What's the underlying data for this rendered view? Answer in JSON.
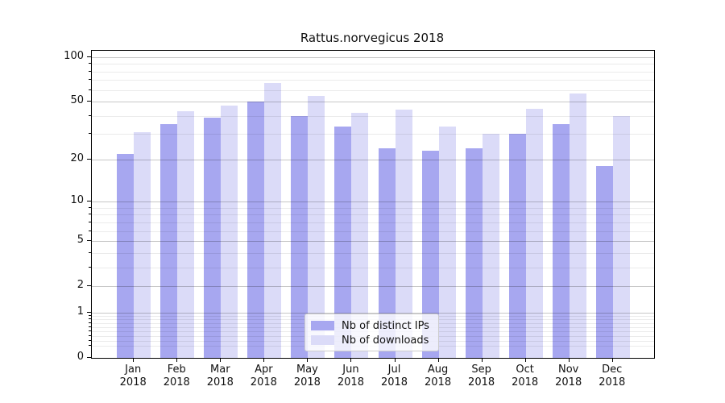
{
  "title": "Rattus.norvegicus 2018",
  "chart_data": {
    "type": "bar",
    "title": "Rattus.norvegicus 2018",
    "year": "2018",
    "categories": [
      "Jan",
      "Feb",
      "Mar",
      "Apr",
      "May",
      "Jun",
      "Jul",
      "Aug",
      "Sep",
      "Oct",
      "Nov",
      "Dec"
    ],
    "series": [
      {
        "name": "Nb of distinct IPs",
        "color": "#a7a7f0",
        "values": [
          22,
          35,
          39,
          50,
          40,
          34,
          24,
          23,
          24,
          30,
          35,
          18
        ]
      },
      {
        "name": "Nb of downloads",
        "color": "#dbdbf8",
        "values": [
          31,
          43,
          47,
          67,
          55,
          42,
          44,
          34,
          30,
          45,
          57,
          40
        ]
      }
    ],
    "yscale": "log1p",
    "ylim": [
      0,
      110
    ],
    "yticks": [
      100,
      50,
      20,
      10,
      5,
      2,
      1,
      0
    ],
    "minor_yticks": [
      0.2,
      0.3,
      0.4,
      0.5,
      0.6,
      0.7,
      0.8,
      0.9,
      3,
      4,
      6,
      7,
      8,
      9,
      30,
      40,
      60,
      70,
      80,
      90
    ],
    "grid": "major+minor",
    "legend_position": "lower center",
    "xlabel": "",
    "ylabel": ""
  }
}
